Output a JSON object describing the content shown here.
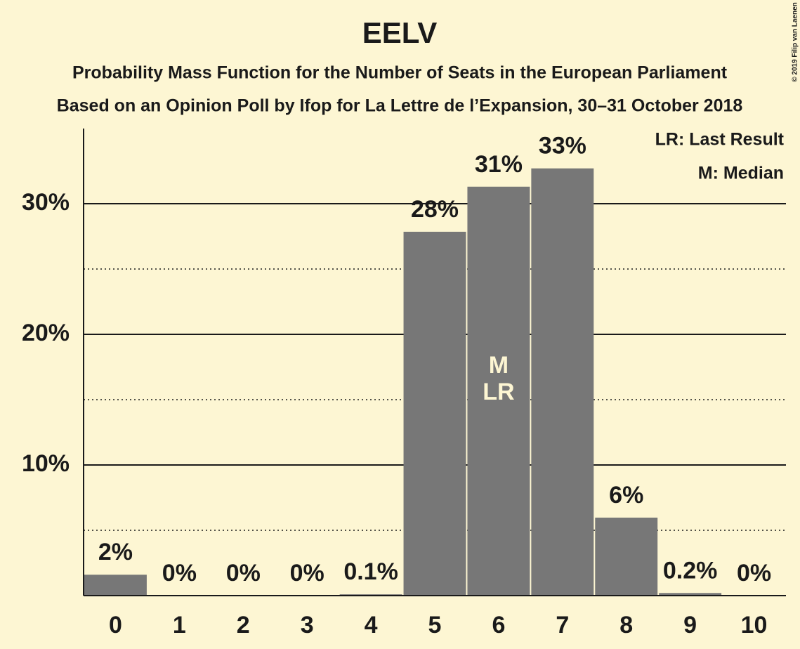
{
  "chart_data": {
    "type": "bar",
    "title": "EELV",
    "subtitle": "Probability Mass Function for the Number of Seats in the European Parliament",
    "subtitle2": "Based on an Opinion Poll by Ifop for La Lettre de l’Expansion, 30–31 October 2018",
    "copyright": "© 2019 Filip van Laenen",
    "legend": [
      "LR: Last Result",
      "M: Median"
    ],
    "annotations": [
      "M",
      "LR"
    ],
    "categories": [
      "0",
      "1",
      "2",
      "3",
      "4",
      "5",
      "6",
      "7",
      "8",
      "9",
      "10"
    ],
    "values": [
      1.6,
      0,
      0,
      0,
      0.1,
      27.85,
      31.3,
      32.7,
      5.97,
      0.2,
      0
    ],
    "value_labels": [
      "2%",
      "0%",
      "0%",
      "0%",
      "0.1%",
      "28%",
      "31%",
      "33%",
      "6%",
      "0.2%",
      "0%"
    ],
    "color": "#777777",
    "ylim": [
      0,
      35.75
    ],
    "yticks": [
      {
        "value": 10,
        "label": "10%"
      },
      {
        "value": 20,
        "label": "20%"
      },
      {
        "value": 30,
        "label": "30%"
      }
    ],
    "minor_yticks": [
      5,
      15,
      25
    ],
    "grid": true
  }
}
